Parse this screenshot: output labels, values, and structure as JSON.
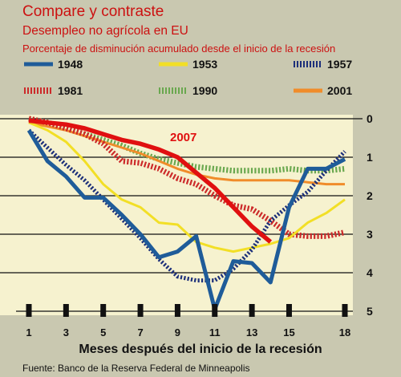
{
  "header": {
    "title": "Compare y contraste",
    "subtitle": "Desempleo no agrícola en EU",
    "description": "Porcentaje de disminución acumulado desde el inicio de la recesión"
  },
  "footer": {
    "xlabel": "Meses después del inicio de la recesión",
    "source": "Fuente: Banco de la Reserva Federal de Minneapolis"
  },
  "annotation": "2007",
  "colors": {
    "background": "#c9c8b0",
    "plot_background": "#f6f2cf",
    "title_red": "#cc1111"
  },
  "chart_data": {
    "type": "line",
    "title": "Compare y contraste",
    "subtitle": "Desempleo no agrícola en EU",
    "xlabel": "Meses después del inicio de la recesión",
    "ylabel": "Porcentaje de disminución acumulado desde el inicio de la recesión",
    "x_ticks": [
      1,
      3,
      5,
      7,
      9,
      11,
      13,
      15,
      18
    ],
    "y_ticks": [
      0,
      1,
      2,
      3,
      4,
      5
    ],
    "ylim": [
      0,
      5
    ],
    "y_inverted": true,
    "grid": "horizontal",
    "legend_position": "top",
    "series": [
      {
        "name": "1948",
        "color": "#1f5c99",
        "style": "solid",
        "x": [
          1,
          2,
          3,
          4,
          5,
          6,
          7,
          8,
          9,
          10,
          11,
          12,
          13,
          14,
          15,
          16,
          17,
          18
        ],
        "values": [
          0.3,
          1.1,
          1.5,
          2.05,
          2.05,
          2.5,
          3.0,
          3.6,
          3.45,
          3.05,
          4.95,
          3.7,
          3.75,
          4.25,
          2.3,
          1.3,
          1.3,
          1.05
        ]
      },
      {
        "name": "1953",
        "color": "#f2df26",
        "style": "solid",
        "x": [
          1,
          2,
          3,
          4,
          5,
          6,
          7,
          8,
          9,
          10,
          11,
          12,
          13,
          14,
          15,
          16,
          17,
          18
        ],
        "values": [
          0.1,
          0.3,
          0.6,
          1.1,
          1.7,
          2.1,
          2.3,
          2.7,
          2.75,
          3.2,
          3.35,
          3.45,
          3.35,
          3.25,
          3.1,
          2.7,
          2.45,
          2.1
        ]
      },
      {
        "name": "1957",
        "color": "#1c2f7a",
        "style": "dotted",
        "x": [
          1,
          2,
          3,
          4,
          5,
          6,
          7,
          8,
          9,
          10,
          11,
          12,
          13,
          14,
          15,
          16,
          17,
          18
        ],
        "values": [
          0.3,
          0.75,
          1.2,
          1.6,
          2.1,
          2.6,
          3.1,
          3.65,
          4.1,
          4.2,
          4.2,
          3.9,
          3.4,
          2.65,
          2.25,
          1.9,
          1.35,
          0.85
        ]
      },
      {
        "name": "1981",
        "color": "#cc2a2a",
        "style": "dotted",
        "x": [
          1,
          2,
          3,
          4,
          5,
          6,
          7,
          8,
          9,
          10,
          11,
          12,
          13,
          14,
          15,
          16,
          17,
          18
        ],
        "values": [
          0.0,
          0.1,
          0.25,
          0.4,
          0.65,
          1.1,
          1.15,
          1.3,
          1.55,
          1.7,
          2.0,
          2.25,
          2.35,
          2.65,
          3.0,
          3.05,
          3.05,
          2.95
        ]
      },
      {
        "name": "1990",
        "color": "#6aa84f",
        "style": "dotted",
        "x": [
          1,
          2,
          3,
          4,
          5,
          6,
          7,
          8,
          9,
          10,
          11,
          12,
          13,
          14,
          15,
          16,
          17,
          18
        ],
        "values": [
          0.0,
          0.1,
          0.25,
          0.4,
          0.55,
          0.7,
          0.9,
          1.05,
          1.15,
          1.25,
          1.3,
          1.35,
          1.35,
          1.35,
          1.3,
          1.35,
          1.35,
          1.3
        ]
      },
      {
        "name": "2001",
        "color": "#f08c2a",
        "style": "solid",
        "x": [
          1,
          2,
          3,
          4,
          5,
          6,
          7,
          8,
          9,
          10,
          11,
          12,
          13,
          14,
          15,
          16,
          17,
          18
        ],
        "values": [
          0.1,
          0.2,
          0.3,
          0.45,
          0.6,
          0.75,
          0.9,
          1.1,
          1.3,
          1.45,
          1.55,
          1.6,
          1.6,
          1.6,
          1.6,
          1.65,
          1.7,
          1.7
        ]
      },
      {
        "name": "2007",
        "color": "#e01010",
        "style": "solid",
        "x": [
          1,
          2,
          3,
          4,
          5,
          6,
          7,
          8,
          9,
          10,
          11,
          12,
          13,
          14
        ],
        "values": [
          0.05,
          0.1,
          0.15,
          0.25,
          0.4,
          0.55,
          0.65,
          0.8,
          1.0,
          1.4,
          1.8,
          2.3,
          2.8,
          3.2
        ]
      }
    ]
  }
}
